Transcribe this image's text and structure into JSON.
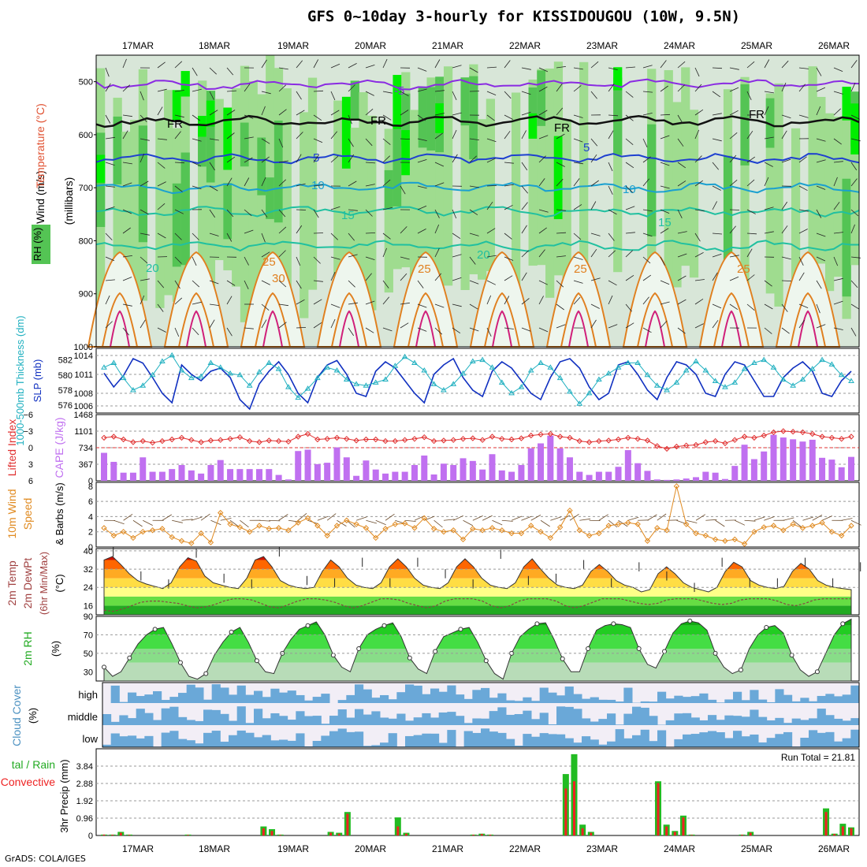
{
  "title": "GFS 0~10day 3-hourly for KISSIDOUGOU (10W, 9.5N)",
  "footer": "GrADS: COLA/IGES",
  "dates": [
    "17MAR",
    "18MAR",
    "19MAR",
    "20MAR",
    "21MAR",
    "22MAR",
    "23MAR",
    "24MAR",
    "25MAR",
    "26MAR"
  ],
  "colors": {
    "rh_light": "#d8e6d8",
    "rh_mid": "#9fdc8f",
    "rh_green": "#54c454",
    "rh_bright": "#00ee00",
    "temp_purple": "#8a2be2",
    "temp_blue": "#1e40d0",
    "temp_cyan": "#1aa0d0",
    "temp_teal": "#20c0a0",
    "temp_orange": "#e08020",
    "temp_magenta": "#d0207a",
    "slp": "#1030c0",
    "thickness": "#20b0c0",
    "cape": "#c070f0",
    "li": "#e03030",
    "wind": "#e08a20",
    "rain_total": "#22bb22",
    "rain_conv": "#ee2222",
    "cloud": "#6aa8d8"
  },
  "chart_data": [
    {
      "type": "heatmap",
      "name": "upper-air cross section",
      "ylabel": "(millibars)",
      "y_ticks": [
        "500",
        "600",
        "700",
        "800",
        "900",
        "1000"
      ],
      "ylim": [
        1000,
        450
      ],
      "legend_labels": {
        "wind": "Wind (m/s)",
        "temperature": "Temperature (°C)",
        "rh": "RH (%)"
      },
      "contour_labels": [
        "-5",
        "FR",
        "5",
        "10",
        "15",
        "20",
        "25",
        "30"
      ],
      "isotherms": [
        {
          "temp_c": -5,
          "mean_level_mb": 505
        },
        {
          "temp_c": 0,
          "mean_level_mb": 575
        },
        {
          "temp_c": 5,
          "mean_level_mb": 645
        },
        {
          "temp_c": 10,
          "mean_level_mb": 700
        },
        {
          "temp_c": 15,
          "mean_level_mb": 745
        },
        {
          "temp_c": 20,
          "mean_level_mb": 810
        }
      ]
    },
    {
      "type": "line",
      "name": "thickness and SLP",
      "left_label": "1000-500mb Thickness (dm)",
      "right_label": "SLP (mb)",
      "left_ticks": [
        "576",
        "578",
        "580",
        "582"
      ],
      "right_ticks": [
        "1006",
        "1008",
        "1011",
        "1014"
      ],
      "series": [
        {
          "name": "SLP (mb)",
          "values": [
            1011.2,
            1009.0,
            1010.8,
            1013.5,
            1012.8,
            1010.5,
            1008.0,
            1006.5,
            1012.5,
            1011.0,
            1010.0,
            1011.5,
            1012.0,
            1010.5,
            1007.0,
            1005.5,
            1009.5,
            1011.5,
            1013.0,
            1011.0,
            1008.0,
            1006.5,
            1010.5,
            1012.5,
            1013.2,
            1011.0,
            1008.0,
            1007.5,
            1011.5,
            1013.0,
            1012.0,
            1010.0,
            1008.0,
            1006.5,
            1011.0,
            1012.5,
            1013.5,
            1010.5,
            1008.5,
            1007.5,
            1011.5,
            1013.0,
            1012.0,
            1010.0,
            1008.0,
            1007.0,
            1010.5,
            1013.0,
            1013.5,
            1012.0,
            1009.0,
            1007.0,
            1008.0,
            1012.5,
            1013.0,
            1011.0,
            1008.5,
            1007.0,
            1010.5,
            1013.0,
            1012.5,
            1011.0,
            1008.0,
            1007.5,
            1011.0,
            1013.0,
            1012.5,
            1010.0,
            1007.5,
            1007.5,
            1010.5,
            1012.0,
            1013.0,
            1011.5,
            1008.0,
            1007.5,
            1010.0,
            1011.5
          ]
        },
        {
          "name": "1000-500mb Thickness (dm)",
          "values": [
            581.0,
            581.6,
            579.6,
            578.0,
            578.6,
            580.0,
            581.8,
            582.6,
            580.6,
            579.6,
            579.8,
            581.6,
            581.0,
            580.2,
            580.0,
            578.6,
            580.4,
            581.6,
            580.8,
            578.4,
            577.0,
            578.2,
            579.6,
            581.0,
            580.6,
            579.4,
            578.8,
            578.6,
            579.0,
            579.4,
            581.2,
            582.4,
            581.6,
            580.6,
            578.8,
            578.0,
            578.8,
            580.2,
            581.8,
            582.0,
            581.0,
            579.0,
            577.6,
            578.4,
            580.6,
            581.6,
            581.0,
            579.6,
            577.8,
            576.2,
            577.6,
            579.4,
            580.2,
            581.0,
            581.6,
            581.6,
            580.0,
            578.6,
            578.0,
            579.0,
            580.6,
            581.8,
            580.6,
            579.2,
            578.4,
            579.0,
            580.8,
            581.6,
            582.0,
            581.0,
            579.4,
            578.6,
            579.4,
            580.8,
            582.0,
            581.4,
            580.0,
            579.2
          ]
        }
      ]
    },
    {
      "type": "bar",
      "name": "CAPE and Lifted Index",
      "left_label": "Lifted Index",
      "right_label": "CAPE (J/kg)",
      "left_ticks": [
        "-6",
        "-3",
        "0",
        "3",
        "6"
      ],
      "right_ticks": [
        "1468",
        "1101",
        "734",
        "367",
        "0"
      ],
      "series": [
        {
          "name": "CAPE (J/kg)",
          "values": [
            620,
            420,
            180,
            180,
            520,
            200,
            200,
            260,
            350,
            230,
            160,
            350,
            460,
            260,
            260,
            260,
            260,
            260,
            130,
            30,
            660,
            690,
            370,
            400,
            740,
            520,
            110,
            450,
            250,
            160,
            200,
            200,
            350,
            560,
            140,
            380,
            350,
            500,
            440,
            250,
            590,
            230,
            200,
            350,
            720,
            830,
            1000,
            720,
            520,
            200,
            130,
            200,
            200,
            310,
            680,
            390,
            220,
            30,
            20,
            30,
            50,
            80,
            200,
            180,
            40,
            330,
            800,
            480,
            650,
            1020,
            960,
            920,
            870,
            910,
            510,
            470,
            300,
            530
          ]
        },
        {
          "name": "Lifted Index",
          "values": [
            -1.8,
            -2.0,
            -1.5,
            -1.0,
            -1.2,
            -0.9,
            -1.2,
            -1.5,
            -1.8,
            -1.4,
            -1.0,
            -1.3,
            -1.4,
            -1.6,
            -1.9,
            -1.2,
            -1.0,
            -1.3,
            -1.2,
            -1.1,
            -2.0,
            -2.5,
            -1.5,
            -1.6,
            -1.8,
            -1.6,
            -1.3,
            -1.5,
            -1.5,
            -1.2,
            -1.2,
            -1.4,
            -1.6,
            -1.9,
            -1.2,
            -1.3,
            -1.4,
            -1.6,
            -1.7,
            -1.4,
            -2.0,
            -1.6,
            -1.5,
            -1.7,
            -2.2,
            -2.4,
            -2.5,
            -2.0,
            -1.8,
            -1.2,
            -1.0,
            -1.2,
            -1.3,
            -1.5,
            -1.8,
            -1.6,
            -1.3,
            -0.3,
            0.2,
            -0.2,
            -0.4,
            -0.5,
            -1.0,
            -1.2,
            -0.8,
            -1.4,
            -2.0,
            -1.8,
            -2.2,
            -2.8,
            -3.0,
            -2.9,
            -2.8,
            -2.5,
            -2.0,
            -1.8,
            -1.6,
            -2.0
          ]
        }
      ]
    },
    {
      "type": "line",
      "name": "10m wind",
      "ylabel": "10m Wind Speed & Barbs (m/s)",
      "y_ticks": [
        "0",
        "2",
        "4",
        "6",
        "8"
      ],
      "ylim": [
        0,
        8.5
      ],
      "values": [
        2.5,
        1.5,
        2.0,
        1.2,
        2.0,
        2.2,
        2.4,
        1.3,
        0.8,
        0.5,
        1.8,
        0.6,
        4.5,
        3.0,
        2.6,
        2.0,
        2.8,
        2.4,
        2.5,
        2.2,
        3.2,
        3.8,
        2.8,
        1.5,
        2.8,
        3.5,
        3.0,
        2.5,
        1.2,
        2.4,
        3.0,
        3.1,
        2.5,
        3.8,
        2.4,
        2.0,
        2.2,
        1.0,
        2.4,
        2.2,
        2.5,
        2.2,
        1.8,
        1.8,
        2.8,
        2.0,
        1.2,
        2.6,
        4.8,
        2.2,
        1.5,
        1.8,
        2.8,
        3.0,
        3.2,
        3.0,
        0.8,
        2.5,
        2.2,
        8.0,
        3.0,
        1.8,
        1.5,
        1.0,
        0.8,
        1.0,
        0.4,
        2.0,
        2.6,
        2.8,
        2.2,
        3.0,
        2.5,
        2.8,
        3.2,
        2.0,
        1.5,
        2.8
      ]
    },
    {
      "type": "area",
      "name": "2m temperature and dew point",
      "ylabel": "2m Temp 2m DewPt (6hr Min/Max) (°C)",
      "y_ticks": [
        "16",
        "24",
        "32",
        "40"
      ],
      "ylim": [
        12,
        41
      ],
      "series": [
        {
          "name": "2m Temp",
          "values": [
            36,
            37.5,
            34,
            30,
            27,
            25.5,
            24.5,
            23.5,
            26,
            33,
            37,
            35.5,
            29,
            26,
            25,
            24,
            23.5,
            28,
            36,
            37.5,
            33,
            27,
            25,
            24,
            23.5,
            24,
            31,
            36,
            33,
            28,
            25,
            24,
            23.5,
            26,
            33,
            36.5,
            33,
            28,
            25,
            24,
            23.5,
            26,
            33,
            36.5,
            33,
            28,
            25,
            24,
            23.5,
            26,
            33,
            36.5,
            32,
            28,
            25,
            24,
            23.5,
            25,
            31,
            34,
            31,
            27,
            25,
            24,
            22,
            23,
            30,
            33,
            30,
            26,
            24,
            23,
            22,
            24,
            31,
            35,
            33,
            27,
            25,
            24,
            23.5,
            24.5,
            31,
            34.5,
            32,
            27,
            25,
            24,
            23.5,
            23
          ]
        },
        {
          "name": "2m DewPt",
          "values": [
            14,
            13.5,
            14.5,
            16,
            17.5,
            18,
            18,
            17.5,
            17,
            16,
            15,
            15.5,
            16.5,
            18,
            19,
            19,
            18.5,
            17,
            15.5,
            15,
            16.5,
            18,
            19,
            19,
            18.5,
            17.5,
            16,
            15,
            16,
            17.5,
            19,
            19,
            18.5,
            17,
            16,
            15,
            16,
            18,
            19,
            19,
            19,
            18,
            16,
            15,
            16,
            18,
            19,
            19,
            19,
            18,
            16,
            15,
            16,
            17.5,
            19,
            19,
            19,
            18,
            17,
            16.5,
            17,
            18.5,
            19,
            19,
            19,
            18,
            17,
            16.5,
            17,
            18.5,
            19,
            19,
            19,
            18,
            16.5,
            16,
            17,
            18.5,
            19,
            19,
            19,
            19
          ]
        }
      ]
    },
    {
      "type": "area",
      "name": "2m RH",
      "ylabel": "2m RH (%)",
      "y_ticks": [
        "30",
        "50",
        "70",
        "90"
      ],
      "ylim": [
        20,
        90
      ],
      "values": [
        35,
        25,
        30,
        45,
        60,
        70,
        76,
        78,
        60,
        40,
        25,
        22,
        28,
        48,
        62,
        73,
        78,
        62,
        42,
        30,
        28,
        50,
        65,
        76,
        80,
        84,
        70,
        48,
        35,
        30,
        55,
        70,
        76,
        80,
        83,
        68,
        45,
        33,
        28,
        52,
        68,
        72,
        76,
        78,
        62,
        42,
        28,
        22,
        50,
        68,
        76,
        82,
        83,
        65,
        44,
        30,
        30,
        55,
        75,
        80,
        82,
        81,
        78,
        55,
        38,
        34,
        52,
        72,
        82,
        85,
        83,
        75,
        50,
        35,
        28,
        32,
        55,
        70,
        78,
        80,
        72,
        48,
        32,
        25,
        30,
        50,
        70,
        82,
        87
      ]
    },
    {
      "type": "heatmap",
      "name": "cloud cover",
      "ylabel": "Cloud Cover (%)",
      "row_labels": [
        "high",
        "middle",
        "low"
      ]
    },
    {
      "type": "bar",
      "name": "3hr precipitation",
      "ylabel": "3hr Precip (mm)",
      "left_label": "Total / Rain Convective",
      "y_ticks": [
        "0",
        "0.96",
        "1.92",
        "2.88",
        "3.84"
      ],
      "ylim": [
        0,
        4.8
      ],
      "run_total": "Run Total = 21.81",
      "series": [
        {
          "name": "Total",
          "values": [
            0.05,
            0.05,
            0.2,
            0.05,
            0,
            0,
            0,
            0,
            0,
            0,
            0.05,
            0,
            0,
            0,
            0,
            0,
            0,
            0,
            0,
            0.5,
            0.35,
            0.05,
            0,
            0,
            0,
            0,
            0,
            0.2,
            0.15,
            1.3,
            0,
            0,
            0,
            0,
            0,
            1.0,
            0.15,
            0,
            0,
            0,
            0,
            0,
            0,
            0,
            0.05,
            0.1,
            0.05,
            0,
            0,
            0,
            0,
            0,
            0,
            0,
            0,
            3.4,
            4.5,
            0.6,
            0.2,
            0,
            0,
            0,
            0,
            0,
            0,
            0,
            3.0,
            0.6,
            0.25,
            1.1,
            0.05,
            0,
            0,
            0,
            0,
            0,
            0.05,
            0.2,
            0,
            0,
            0,
            0,
            0,
            0,
            0,
            0,
            1.5,
            0.1,
            0.65,
            0.45
          ]
        },
        {
          "name": "Convective",
          "values": [
            0.05,
            0.04,
            0.15,
            0.03,
            0,
            0,
            0,
            0,
            0,
            0,
            0.03,
            0,
            0,
            0,
            0,
            0,
            0,
            0,
            0,
            0.4,
            0.25,
            0.03,
            0,
            0,
            0,
            0,
            0,
            0.15,
            0.1,
            1.2,
            0,
            0,
            0,
            0,
            0,
            0.5,
            0.1,
            0,
            0,
            0,
            0,
            0,
            0,
            0,
            0.04,
            0.08,
            0.04,
            0,
            0,
            0,
            0,
            0,
            0,
            0,
            0,
            2.6,
            3.0,
            0.4,
            0.15,
            0,
            0,
            0,
            0,
            0,
            0,
            0,
            2.9,
            0.5,
            0.2,
            1.0,
            0.03,
            0,
            0,
            0,
            0,
            0,
            0.04,
            0.15,
            0,
            0,
            0,
            0,
            0,
            0,
            0,
            0,
            1.3,
            0.08,
            0.5,
            0.4
          ]
        }
      ]
    }
  ]
}
